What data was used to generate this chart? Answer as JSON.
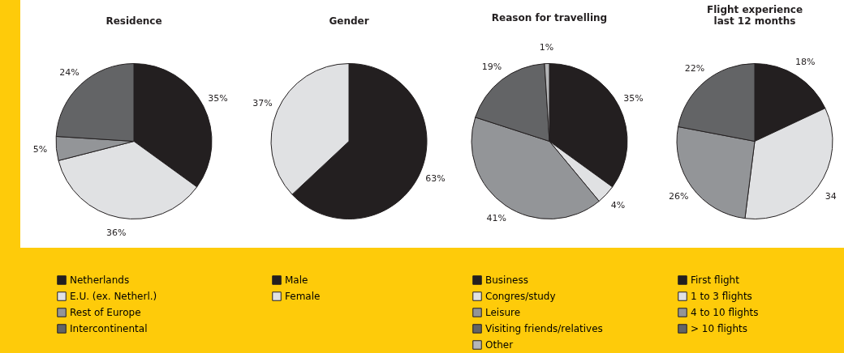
{
  "chart_data": [
    {
      "type": "pie",
      "title": "Residence",
      "categories": [
        "Netherlands",
        "E.U. (ex. Netherl.)",
        "Rest of Europe",
        "Intercontinental"
      ],
      "values": [
        35,
        36,
        5,
        24
      ],
      "colors": [
        "#231f20",
        "#e0e1e3",
        "#939598",
        "#636466"
      ],
      "value_labels": [
        "35%",
        "36%",
        "5%",
        "24%"
      ],
      "legend": "bottom"
    },
    {
      "type": "pie",
      "title": "Gender",
      "categories": [
        "Male",
        "Female"
      ],
      "values": [
        63,
        37
      ],
      "colors": [
        "#231f20",
        "#e0e1e3"
      ],
      "value_labels": [
        "63%",
        "37%"
      ],
      "legend": "bottom"
    },
    {
      "type": "pie",
      "title": "Reason for travelling",
      "categories": [
        "Business",
        "Congres/study",
        "Leisure",
        "Visiting friends/relatives",
        "Other"
      ],
      "values": [
        35,
        4,
        41,
        19,
        1
      ],
      "colors": [
        "#231f20",
        "#e0e1e3",
        "#939598",
        "#636466",
        "#b5b6b8"
      ],
      "value_labels": [
        "35%",
        "4%",
        "41%",
        "19%",
        "1%"
      ],
      "legend": "bottom"
    },
    {
      "type": "pie",
      "title": "Flight experience\nlast 12 months",
      "categories": [
        "First flight",
        "1 to 3 flights",
        "4 to 10 flights",
        "> 10 flights"
      ],
      "values": [
        18,
        34,
        26,
        22
      ],
      "colors": [
        "#231f20",
        "#e0e1e3",
        "#939598",
        "#636466"
      ],
      "value_labels": [
        "18%",
        "34",
        "26%",
        "22%"
      ],
      "legend": "bottom"
    }
  ]
}
